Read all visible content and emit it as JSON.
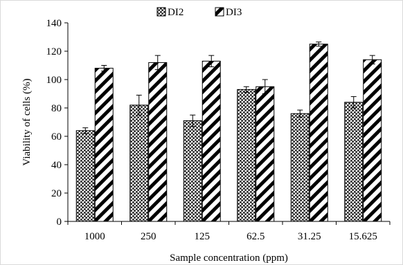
{
  "chart_data": {
    "type": "bar",
    "title": "",
    "xlabel": "Sample concentration (ppm)",
    "ylabel": "Viability of cells (%)",
    "ylim": [
      0,
      140
    ],
    "yticks": [
      0,
      20,
      40,
      60,
      80,
      100,
      120,
      140
    ],
    "categories": [
      "1000",
      "250",
      "125",
      "62.5",
      "31.25",
      "15.625"
    ],
    "series": [
      {
        "name": "DI2",
        "values": [
          64,
          82,
          71,
          93,
          76,
          84
        ],
        "errors": [
          2,
          7,
          4,
          2,
          2.5,
          4
        ],
        "pattern": "crosshatch"
      },
      {
        "name": "DI3",
        "values": [
          108,
          112,
          113,
          95,
          125,
          114
        ],
        "errors": [
          2,
          5,
          4,
          5,
          1.5,
          3
        ],
        "pattern": "diagonal"
      }
    ],
    "legend_position": "top-center",
    "grid": false
  }
}
